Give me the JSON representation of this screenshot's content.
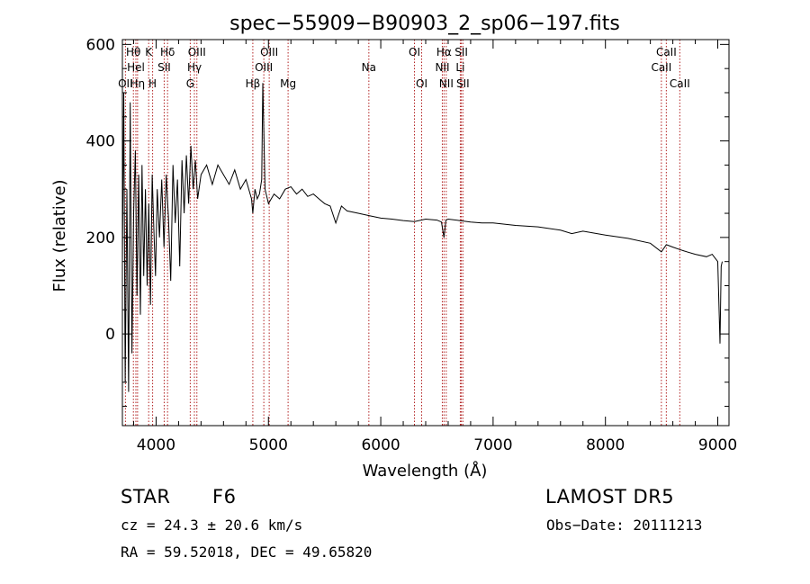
{
  "chart_data": {
    "type": "line",
    "title": "spec−55909−B90903_2_sp06−197.fits",
    "xlabel": "Wavelength (Å)",
    "ylabel": "Flux (relative)",
    "xlim": [
      3700,
      9100
    ],
    "ylim": [
      -190,
      610
    ],
    "x_ticks": [
      4000,
      5000,
      6000,
      7000,
      8000,
      9000
    ],
    "y_ticks": [
      0,
      200,
      400,
      600
    ],
    "grid": false,
    "series": [
      {
        "x": [
          3700,
          3712,
          3725,
          3740,
          3755,
          3770,
          3785,
          3800,
          3815,
          3830,
          3845,
          3860,
          3875,
          3890,
          3905,
          3920,
          3935,
          3950,
          3965,
          3980,
          3995,
          4010,
          4030,
          4050,
          4070,
          4090,
          4110,
          4130,
          4150,
          4170,
          4190,
          4210,
          4230,
          4250,
          4270,
          4290,
          4310,
          4330,
          4350,
          4370,
          4400,
          4450,
          4500,
          4550,
          4600,
          4650,
          4700,
          4750,
          4800,
          4850,
          4861,
          4880,
          4900,
          4920,
          4940,
          4950,
          4970,
          5000,
          5050,
          5100,
          5150,
          5200,
          5250,
          5300,
          5350,
          5400,
          5450,
          5500,
          5550,
          5600,
          5650,
          5700,
          5800,
          5900,
          6000,
          6100,
          6200,
          6300,
          6400,
          6500,
          6540,
          6563,
          6580,
          6600,
          6700,
          6800,
          6900,
          7000,
          7200,
          7400,
          7600,
          7700,
          7800,
          8000,
          8200,
          8400,
          8498,
          8542,
          8600,
          8662,
          8700,
          8800,
          8900,
          8950,
          9000,
          9020,
          9030,
          9040
        ],
        "y": [
          150,
          500,
          -100,
          300,
          -120,
          480,
          -40,
          250,
          380,
          80,
          330,
          40,
          350,
          120,
          300,
          100,
          270,
          60,
          330,
          220,
          120,
          300,
          200,
          320,
          180,
          330,
          240,
          110,
          350,
          230,
          320,
          140,
          360,
          250,
          370,
          270,
          390,
          300,
          360,
          280,
          330,
          350,
          310,
          350,
          330,
          310,
          340,
          300,
          320,
          280,
          250,
          300,
          280,
          290,
          320,
          520,
          300,
          270,
          290,
          280,
          300,
          305,
          290,
          300,
          285,
          290,
          280,
          270,
          265,
          230,
          265,
          255,
          250,
          245,
          240,
          238,
          235,
          233,
          238,
          236,
          232,
          200,
          236,
          238,
          235,
          232,
          230,
          230,
          225,
          222,
          215,
          208,
          213,
          205,
          198,
          188,
          170,
          185,
          180,
          175,
          172,
          165,
          160,
          165,
          150,
          -20,
          140,
          150
        ]
      }
    ],
    "line_labels": [
      {
        "label": "OII",
        "x": 3727,
        "row": 3
      },
      {
        "label": "Hθ",
        "x": 3798,
        "row": 1
      },
      {
        "label": "Hel",
        "x": 3820,
        "row": 2
      },
      {
        "label": "Hη",
        "x": 3835,
        "row": 3
      },
      {
        "label": "K",
        "x": 3934,
        "row": 1
      },
      {
        "label": "H",
        "x": 3969,
        "row": 3
      },
      {
        "label": "Hδ",
        "x": 4102,
        "row": 1
      },
      {
        "label": "SII",
        "x": 4072,
        "row": 2
      },
      {
        "label": "G",
        "x": 4304,
        "row": 3
      },
      {
        "label": "Hγ",
        "x": 4341,
        "row": 2
      },
      {
        "label": "OIII",
        "x": 4363,
        "row": 1
      },
      {
        "label": "Hβ",
        "x": 4861,
        "row": 3
      },
      {
        "label": "OIII",
        "x": 4959,
        "row": 2
      },
      {
        "label": "OIII",
        "x": 5007,
        "row": 1
      },
      {
        "label": "Mg",
        "x": 5175,
        "row": 3
      },
      {
        "label": "Na",
        "x": 5894,
        "row": 2
      },
      {
        "label": "OI",
        "x": 6300,
        "row": 1
      },
      {
        "label": "OI",
        "x": 6364,
        "row": 3
      },
      {
        "label": "NII",
        "x": 6548,
        "row": 2
      },
      {
        "label": "Hα",
        "x": 6563,
        "row": 1
      },
      {
        "label": "NII",
        "x": 6583,
        "row": 3
      },
      {
        "label": "SII",
        "x": 6717,
        "row": 1
      },
      {
        "label": "Li",
        "x": 6708,
        "row": 2
      },
      {
        "label": "SII",
        "x": 6731,
        "row": 3
      },
      {
        "label": "CaII",
        "x": 8498,
        "row": 2
      },
      {
        "label": "CaII",
        "x": 8542,
        "row": 1
      },
      {
        "label": "CaII",
        "x": 8662,
        "row": 3
      }
    ]
  },
  "info": {
    "class": "STAR",
    "subclass": "F6",
    "survey": "LAMOST DR5",
    "cz": "cz = 24.3 ± 20.6 km/s",
    "obs_date": "Obs−Date: 20111213",
    "coords": "RA =  59.52018, DEC =  49.65820"
  }
}
